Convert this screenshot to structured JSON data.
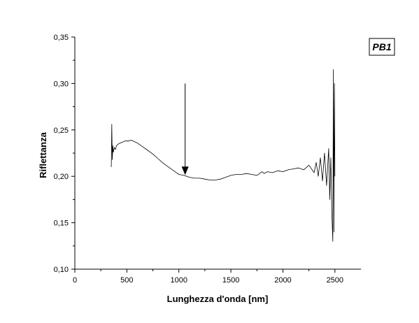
{
  "chart_data": {
    "type": "line",
    "title": "",
    "badge": "PB1",
    "xlabel": "Lunghezza d'onda [nm]",
    "ylabel": "Riflettanza",
    "xlim": [
      0,
      2750
    ],
    "ylim": [
      0.1,
      0.35
    ],
    "x_ticks": [
      0,
      500,
      1000,
      1500,
      2000,
      2500
    ],
    "x_tick_labels": [
      "0",
      "500",
      "1000",
      "1500",
      "2000",
      "2500"
    ],
    "y_ticks": [
      0.1,
      0.15,
      0.2,
      0.25,
      0.3,
      0.35
    ],
    "y_tick_labels": [
      "0,10",
      "0,15",
      "0,20",
      "0,25",
      "0,30",
      "0,35"
    ],
    "grid": false,
    "legend": "none",
    "line_color": "#000000",
    "annotation": {
      "type": "arrow",
      "x": 1060,
      "y_from": 0.3,
      "y_to": 0.2
    },
    "series": [
      {
        "x": [
          350,
          355,
          360,
          365,
          370,
          380,
          390,
          400,
          420,
          440,
          460,
          480,
          500,
          520,
          540,
          560,
          580,
          600,
          650,
          700,
          750,
          800,
          850,
          900,
          950,
          1000,
          1050,
          1100,
          1150,
          1200,
          1250,
          1300,
          1350,
          1400,
          1450,
          1500,
          1550,
          1600,
          1650,
          1700,
          1750,
          1800,
          1820,
          1850,
          1900,
          1950,
          2000,
          2050,
          2100,
          2150,
          2200,
          2250,
          2300,
          2320,
          2340,
          2360,
          2380,
          2400,
          2420,
          2440,
          2450,
          2460,
          2470,
          2480,
          2485,
          2490,
          2495,
          2500
        ],
        "y": [
          0.21,
          0.256,
          0.218,
          0.233,
          0.226,
          0.231,
          0.229,
          0.233,
          0.235,
          0.236,
          0.237,
          0.238,
          0.238,
          0.238,
          0.239,
          0.238,
          0.237,
          0.236,
          0.232,
          0.228,
          0.224,
          0.219,
          0.214,
          0.21,
          0.206,
          0.202,
          0.201,
          0.199,
          0.198,
          0.198,
          0.197,
          0.196,
          0.196,
          0.197,
          0.199,
          0.201,
          0.202,
          0.202,
          0.203,
          0.202,
          0.201,
          0.205,
          0.203,
          0.205,
          0.204,
          0.206,
          0.205,
          0.207,
          0.208,
          0.209,
          0.207,
          0.212,
          0.204,
          0.215,
          0.2,
          0.22,
          0.195,
          0.225,
          0.19,
          0.23,
          0.175,
          0.22,
          0.16,
          0.13,
          0.315,
          0.14,
          0.3,
          0.2
        ]
      }
    ]
  }
}
